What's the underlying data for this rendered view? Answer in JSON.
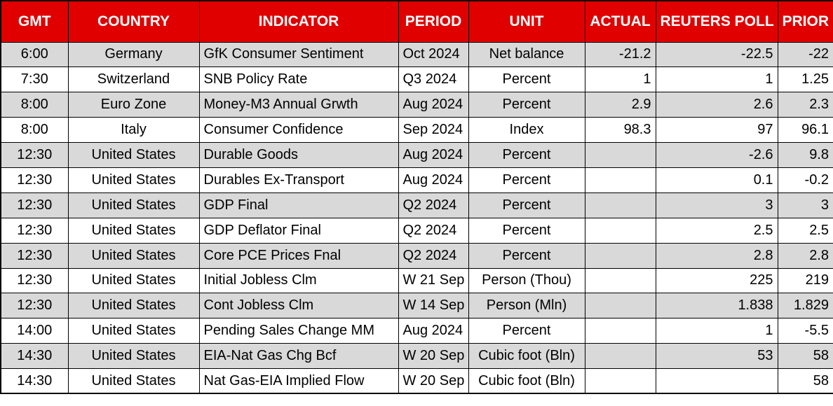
{
  "chart_data": {
    "type": "table",
    "columns": [
      "GMT",
      "COUNTRY",
      "INDICATOR",
      "PERIOD",
      "UNIT",
      "ACTUAL",
      "REUTERS POLL",
      "PRIOR"
    ],
    "rows": [
      [
        "6:00",
        "Germany",
        "GfK Consumer Sentiment",
        "Oct 2024",
        "Net balance",
        "-21.2",
        "-22.5",
        "-22"
      ],
      [
        "7:30",
        "Switzerland",
        "SNB Policy Rate",
        "Q3 2024",
        "Percent",
        "1",
        "1",
        "1.25"
      ],
      [
        "8:00",
        "Euro Zone",
        "Money-M3 Annual Grwth",
        "Aug 2024",
        "Percent",
        "2.9",
        "2.6",
        "2.3"
      ],
      [
        "8:00",
        "Italy",
        "Consumer Confidence",
        "Sep 2024",
        "Index",
        "98.3",
        "97",
        "96.1"
      ],
      [
        "12:30",
        "United States",
        "Durable Goods",
        "Aug 2024",
        "Percent",
        "",
        "-2.6",
        "9.8"
      ],
      [
        "12:30",
        "United States",
        "Durables Ex-Transport",
        "Aug 2024",
        "Percent",
        "",
        "0.1",
        "-0.2"
      ],
      [
        "12:30",
        "United States",
        "GDP Final",
        "Q2 2024",
        "Percent",
        "",
        "3",
        "3"
      ],
      [
        "12:30",
        "United States",
        "GDP Deflator Final",
        "Q2 2024",
        "Percent",
        "",
        "2.5",
        "2.5"
      ],
      [
        "12:30",
        "United States",
        "Core PCE Prices Fnal",
        "Q2 2024",
        "Percent",
        "",
        "2.8",
        "2.8"
      ],
      [
        "12:30",
        "United States",
        "Initial Jobless Clm",
        "W 21 Sep",
        "Person (Thou)",
        "",
        "225",
        "219"
      ],
      [
        "12:30",
        "United States",
        "Cont Jobless Clm",
        "W 14 Sep",
        "Person (Mln)",
        "",
        "1.838",
        "1.829"
      ],
      [
        "14:00",
        "United States",
        "Pending Sales Change MM",
        "Aug 2024",
        "Percent",
        "",
        "1",
        "-5.5"
      ],
      [
        "14:30",
        "United States",
        "EIA-Nat Gas Chg Bcf",
        "W 20 Sep",
        "Cubic foot (Bln)",
        "",
        "53",
        "58"
      ],
      [
        "14:30",
        "United States",
        "Nat Gas-EIA Implied Flow",
        "W 20 Sep",
        "Cubic foot (Bln)",
        "",
        "",
        "58"
      ]
    ],
    "colors": {
      "header_bg": "#e00000",
      "header_text": "#ffffff",
      "row_alt_bg": "#d9d9d9",
      "row_bg": "#ffffff",
      "grid": "#000000",
      "text": "#000000"
    }
  }
}
